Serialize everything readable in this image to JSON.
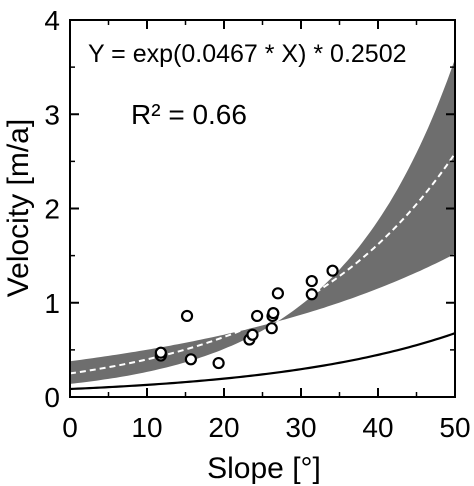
{
  "chart_data": {
    "type": "scatter",
    "xlabel": "Slope [°]",
    "ylabel": "Velocity [m/a]",
    "xlim": [
      0,
      50
    ],
    "ylim": [
      0,
      4
    ],
    "x_ticks": [
      "0",
      "10",
      "20",
      "30",
      "40",
      "50"
    ],
    "y_ticks": [
      "0",
      "1",
      "2",
      "3",
      "4"
    ],
    "grid": false,
    "annotations": {
      "equation": "Y = exp(0.0467 * X) * 0.2502",
      "r_squared": "R² = 0.66"
    },
    "fit": {
      "a": 0.2502,
      "b": 0.0467
    },
    "confidence_band": {
      "lower": {
        "a": 0.38,
        "b": 0.0277
      },
      "upper": {
        "a": 0.139,
        "b": 0.065
      }
    },
    "reference_curve": {
      "a": 0.085,
      "b": 0.0415
    },
    "series": [
      {
        "points": [
          {
            "x": 11.8,
            "y": 0.44
          },
          {
            "x": 11.8,
            "y": 0.47
          },
          {
            "x": 15.2,
            "y": 0.86
          },
          {
            "x": 15.7,
            "y": 0.4
          },
          {
            "x": 19.3,
            "y": 0.36
          },
          {
            "x": 23.3,
            "y": 0.61
          },
          {
            "x": 23.7,
            "y": 0.66
          },
          {
            "x": 24.3,
            "y": 0.86
          },
          {
            "x": 26.2,
            "y": 0.73
          },
          {
            "x": 26.3,
            "y": 0.86
          },
          {
            "x": 26.4,
            "y": 0.89
          },
          {
            "x": 27.0,
            "y": 1.1
          },
          {
            "x": 31.4,
            "y": 1.09
          },
          {
            "x": 31.4,
            "y": 1.23
          },
          {
            "x": 34.1,
            "y": 1.34
          }
        ]
      }
    ],
    "colors": {
      "band": "#6e6e6e",
      "fit_line": "#ffffff",
      "reference_line": "#000000",
      "point_fill": "#ffffff",
      "point_stroke": "#000000"
    }
  }
}
